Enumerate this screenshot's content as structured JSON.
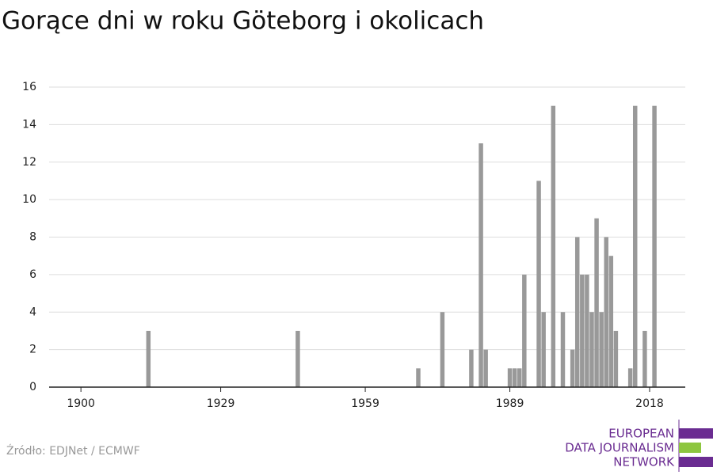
{
  "chart_data": {
    "type": "bar",
    "title": "Gorące dni w roku Göteborg i okolicach",
    "x": [
      1914,
      1945,
      1970,
      1975,
      1981,
      1983,
      1984,
      1989,
      1990,
      1991,
      1992,
      1995,
      1996,
      1998,
      2000,
      2002,
      2003,
      2004,
      2005,
      2006,
      2007,
      2008,
      2009,
      2010,
      2011,
      2014,
      2015,
      2017,
      2019
    ],
    "values": [
      3,
      3,
      1,
      4,
      2,
      13,
      2,
      1,
      1,
      1,
      6,
      11,
      4,
      15,
      4,
      2,
      8,
      6,
      6,
      4,
      9,
      4,
      8,
      7,
      3,
      1,
      15,
      3,
      15
    ],
    "color": "#999999",
    "xlim": [
      1893.4,
      2025.4
    ],
    "xticks": [
      1900,
      1929,
      1959,
      1989,
      2018
    ],
    "ylim": [
      0,
      16
    ],
    "yticks": [
      0,
      2,
      4,
      6,
      8,
      10,
      12,
      14,
      16
    ],
    "grid": true,
    "source": "Źródło: EDJNet / ECMWF"
  },
  "logo": {
    "lines": [
      "EUROPEAN",
      "DATA JOURNALISM",
      "NETWORK"
    ]
  }
}
